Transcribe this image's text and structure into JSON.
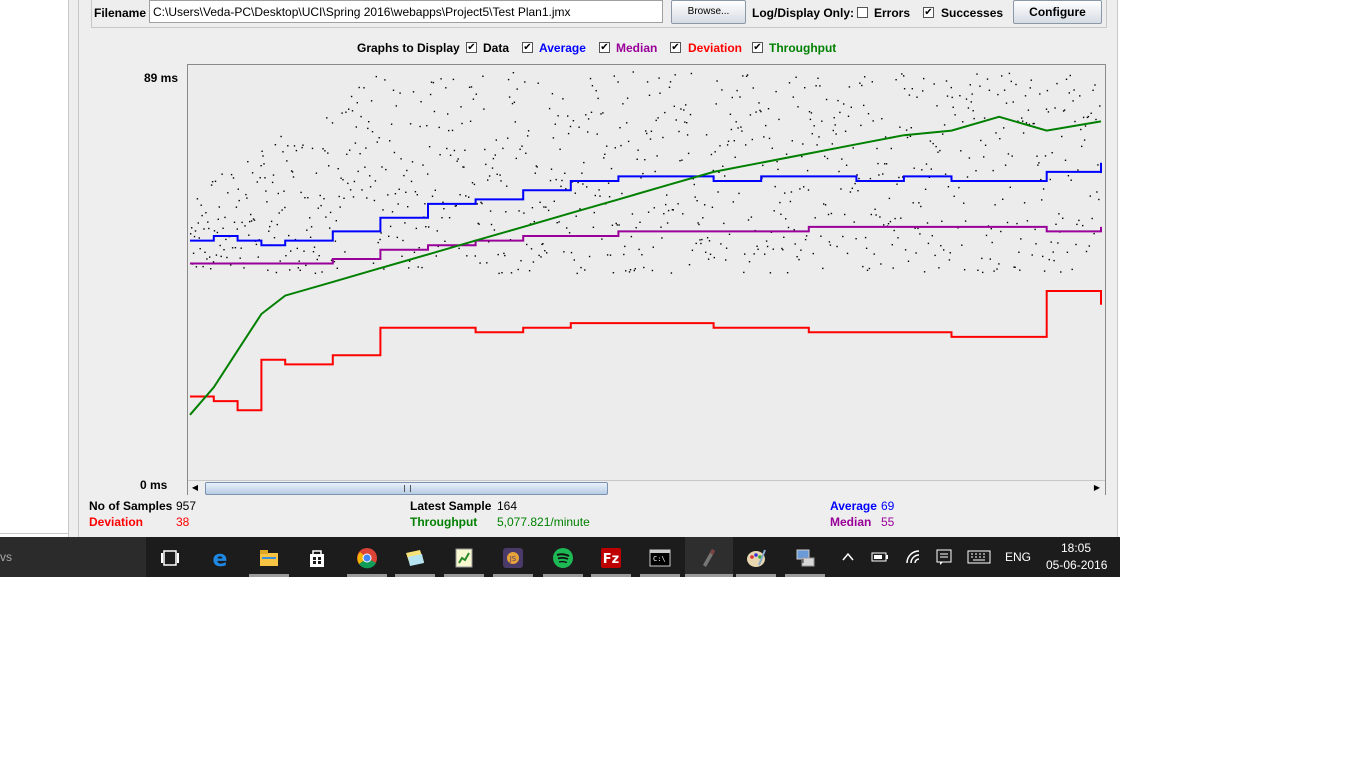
{
  "file_panel": {
    "filename_label": "Filename",
    "filename_value": "C:\\Users\\Veda-PC\\Desktop\\UCI\\Spring 2016\\webapps\\Project5\\Test Plan1.jmx",
    "browse_label": "Browse...",
    "log_display_label": "Log/Display Only:",
    "errors_label": "Errors",
    "errors_checked": false,
    "successes_label": "Successes",
    "successes_checked": true,
    "configure_label": "Configure"
  },
  "graphs_to_display": {
    "label": "Graphs to Display",
    "options": [
      {
        "label": "Data",
        "checked": true,
        "color": "#000000"
      },
      {
        "label": "Average",
        "checked": true,
        "color": "#0000ff"
      },
      {
        "label": "Median",
        "checked": true,
        "color": "#990099"
      },
      {
        "label": "Deviation",
        "checked": true,
        "color": "#ff0000"
      },
      {
        "label": "Throughput",
        "checked": true,
        "color": "#008000"
      }
    ]
  },
  "chart_data": {
    "type": "line",
    "y_max_label": "89  ms",
    "y_min_label": "0  ms",
    "ylim": [
      0,
      89
    ],
    "x": [
      0,
      25,
      50,
      75,
      100,
      150,
      200,
      250,
      300,
      350,
      400,
      450,
      500,
      550,
      600,
      650,
      700,
      750,
      800,
      850,
      900,
      957
    ],
    "series": [
      {
        "name": "Average",
        "color": "#0000ff",
        "values": [
          52,
          53,
          52,
          51,
          52,
          54,
          57,
          60,
          61,
          63,
          65,
          66,
          66,
          65,
          66,
          66,
          65,
          66,
          65,
          65,
          67,
          69
        ]
      },
      {
        "name": "Median",
        "color": "#990099",
        "values": [
          47,
          47,
          47,
          47,
          47,
          48,
          50,
          51,
          52,
          53,
          53,
          54,
          54,
          54,
          54,
          55,
          55,
          55,
          55,
          55,
          54,
          55
        ]
      },
      {
        "name": "Deviation",
        "color": "#ff0000",
        "values": [
          18,
          17,
          15,
          26,
          25,
          27,
          33,
          33,
          32,
          33,
          34,
          34,
          34,
          33,
          33,
          32,
          32,
          32,
          31,
          31,
          41,
          38
        ]
      },
      {
        "name": "Throughput",
        "color": "#008000",
        "values": [
          14,
          20,
          28,
          36,
          40,
          43,
          46,
          49,
          52,
          55,
          58,
          61,
          64,
          67,
          69,
          71,
          73,
          75,
          76,
          79,
          76,
          78
        ]
      }
    ],
    "scatter": {
      "name": "Data",
      "color": "#000000",
      "y_range_note": "points scattered between roughly 45 and 89 ms"
    }
  },
  "summary": {
    "samples_label": "No of Samples",
    "samples_value": "957",
    "latest_label": "Latest Sample",
    "latest_value": "164",
    "average_label": "Average",
    "average_value": "69",
    "deviation_label": "Deviation",
    "deviation_value": "38",
    "throughput_label": "Throughput",
    "throughput_value": "5,077.821/minute",
    "median_label": "Median",
    "median_value": "55"
  },
  "taskbar": {
    "left_text": "vs",
    "icons": [
      "task-view-icon",
      "edge-icon",
      "file-explorer-icon",
      "store-icon",
      "chrome-icon",
      "sticky-notes-icon",
      "spreadsheet-icon",
      "game-icon",
      "spotify-icon",
      "filezilla-icon",
      "command-prompt-icon",
      "pen-app-icon",
      "paint-icon",
      "network-app-icon"
    ],
    "lang": "ENG",
    "time": "18:05",
    "date": "05-06-2016"
  }
}
